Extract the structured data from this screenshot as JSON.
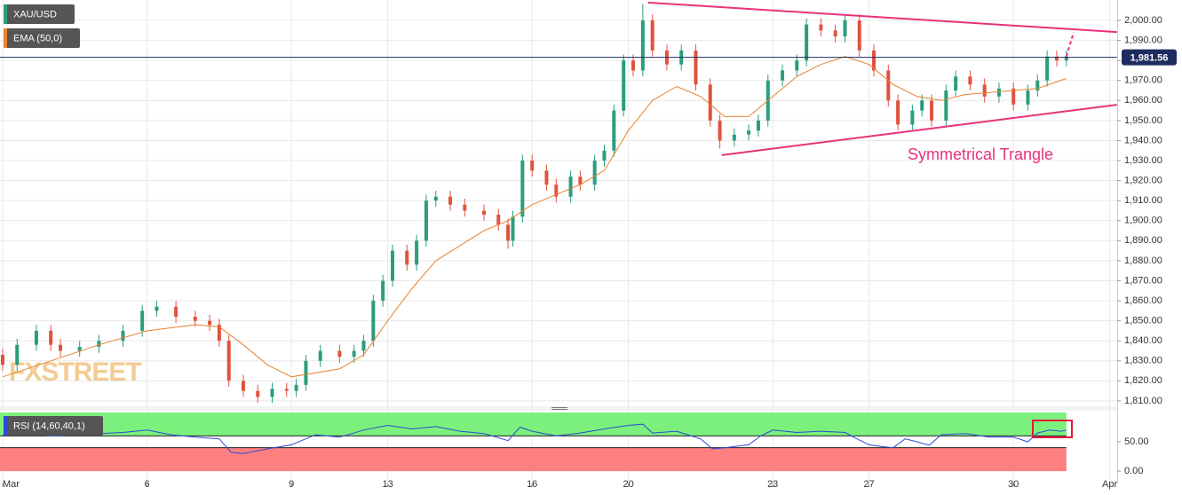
{
  "chart_data": [
    {
      "type": "candlestick",
      "name": "XAU/USD",
      "up_color": "#2a9d7f",
      "down_color": "#e0533f",
      "x": [
        0,
        0.3,
        0.7,
        1,
        1.2,
        1.6,
        2,
        2.5,
        2.9,
        3.2,
        3.6,
        4,
        4.3,
        4.5,
        4.7,
        5,
        5.3,
        5.6,
        5.9,
        6.1,
        6.3,
        6.6,
        7,
        7.3,
        7.5,
        7.7,
        7.9,
        8.1,
        8.4,
        8.6,
        8.8,
        9,
        9.3,
        9.6,
        10,
        10.3,
        10.5,
        10.6,
        10.8,
        11,
        11.3,
        11.5,
        11.8,
        12,
        12.3,
        12.5,
        12.7,
        12.9,
        13.1,
        13.3,
        13.5,
        13.8,
        14.1,
        14.4,
        14.7,
        14.9,
        15.2,
        15.5,
        15.7,
        15.9,
        16.2,
        16.5,
        16.7,
        17,
        17.3,
        17.5,
        17.8,
        18.1,
        18.4,
        18.6,
        18.9,
        19.1,
        19.3,
        19.6,
        19.8,
        20.1,
        20.4,
        20.7,
        21,
        21.3,
        21.5,
        21.7,
        21.9,
        22.1
      ],
      "open": [
        1833,
        1828,
        1838,
        1845,
        1838,
        1835,
        1837,
        1840,
        1845,
        1855,
        1857,
        1852,
        1850,
        1848,
        1840,
        1820,
        1815,
        1812,
        1816,
        1815,
        1818,
        1830,
        1835,
        1832,
        1835,
        1840,
        1860,
        1870,
        1885,
        1878,
        1890,
        1910,
        1912,
        1908,
        1905,
        1903,
        1898,
        1890,
        1902,
        1930,
        1925,
        1918,
        1912,
        1922,
        1918,
        1930,
        1935,
        1955,
        1980,
        1975,
        2000,
        1985,
        1978,
        1985,
        1968,
        1950,
        1940,
        1943,
        1945,
        1950,
        1970,
        1975,
        1980,
        1998,
        1995,
        1992,
        2000,
        1985,
        1975,
        1960,
        1948,
        1955,
        1960,
        1950,
        1965,
        1972,
        1968,
        1962,
        1966,
        1958,
        1965,
        1970,
        1982,
        1980
      ],
      "high": [
        1836,
        1841,
        1848,
        1848,
        1841,
        1840,
        1843,
        1848,
        1858,
        1860,
        1860,
        1855,
        1853,
        1851,
        1843,
        1823,
        1818,
        1819,
        1819,
        1821,
        1833,
        1838,
        1838,
        1838,
        1843,
        1863,
        1873,
        1888,
        1888,
        1893,
        1913,
        1915,
        1915,
        1911,
        1908,
        1906,
        1901,
        1905,
        1933,
        1933,
        1928,
        1921,
        1925,
        1925,
        1933,
        1938,
        1958,
        1983,
        1983,
        2008,
        2003,
        1988,
        1988,
        1988,
        1971,
        1953,
        1946,
        1948,
        1953,
        1973,
        1978,
        1983,
        2001,
        2001,
        1998,
        2003,
        2003,
        1988,
        1978,
        1963,
        1958,
        1963,
        1963,
        1968,
        1975,
        1975,
        1971,
        1969,
        1969,
        1968,
        1973,
        1985,
        1985,
        1985
      ],
      "low": [
        1825,
        1825,
        1835,
        1835,
        1832,
        1832,
        1834,
        1837,
        1842,
        1852,
        1849,
        1847,
        1845,
        1837,
        1817,
        1812,
        1809,
        1809,
        1812,
        1812,
        1815,
        1827,
        1829,
        1829,
        1832,
        1837,
        1857,
        1867,
        1875,
        1875,
        1887,
        1907,
        1905,
        1902,
        1900,
        1895,
        1886,
        1887,
        1899,
        1922,
        1915,
        1909,
        1909,
        1915,
        1915,
        1927,
        1932,
        1952,
        1972,
        1972,
        1982,
        1975,
        1975,
        1965,
        1947,
        1936,
        1937,
        1940,
        1942,
        1947,
        1967,
        1972,
        1977,
        1992,
        1989,
        1989,
        1982,
        1972,
        1957,
        1945,
        1945,
        1952,
        1947,
        1947,
        1962,
        1965,
        1959,
        1959,
        1955,
        1955,
        1962,
        1967,
        1977,
        1977
      ],
      "close": [
        1828,
        1838,
        1845,
        1838,
        1835,
        1837,
        1840,
        1845,
        1855,
        1857,
        1852,
        1850,
        1848,
        1840,
        1820,
        1815,
        1812,
        1816,
        1815,
        1818,
        1830,
        1835,
        1832,
        1835,
        1840,
        1860,
        1870,
        1885,
        1878,
        1890,
        1910,
        1912,
        1908,
        1905,
        1903,
        1898,
        1890,
        1902,
        1930,
        1925,
        1918,
        1912,
        1922,
        1918,
        1930,
        1935,
        1955,
        1980,
        1975,
        2000,
        1985,
        1978,
        1985,
        1968,
        1950,
        1940,
        1943,
        1945,
        1950,
        1970,
        1975,
        1980,
        1998,
        1995,
        1992,
        2000,
        1985,
        1975,
        1960,
        1948,
        1955,
        1960,
        1950,
        1965,
        1972,
        1968,
        1962,
        1966,
        1958,
        1965,
        1970,
        1982,
        1980,
        1982
      ],
      "ema": {
        "name": "EMA (50,0)",
        "color": "#e8822c",
        "x": [
          0,
          1,
          2,
          3,
          4,
          4.5,
          5,
          5.5,
          6,
          7,
          7.5,
          8,
          8.5,
          9,
          10,
          10.5,
          11,
          12,
          12.5,
          13,
          13.5,
          14,
          14.5,
          15,
          15.5,
          16,
          16.5,
          17,
          17.5,
          18,
          18.5,
          19,
          19.5,
          20,
          20.5,
          21,
          21.5,
          22.1
        ],
        "values": [
          1822,
          1830,
          1838,
          1845,
          1848,
          1847,
          1838,
          1828,
          1822,
          1826,
          1833,
          1850,
          1866,
          1880,
          1895,
          1900,
          1908,
          1918,
          1925,
          1945,
          1960,
          1967,
          1962,
          1952,
          1952,
          1962,
          1972,
          1978,
          1982,
          1978,
          1968,
          1962,
          1960,
          1963,
          1964,
          1965,
          1966,
          1971
        ]
      },
      "last_price": {
        "value": 1981.56,
        "label": "1,981.56"
      },
      "trendline_color": "#e8317a",
      "trendlines": [
        {
          "x": [
            13.41,
            23.15
          ],
          "values": [
            2008.9,
            1994.2
          ]
        },
        {
          "x": [
            14.94,
            23.15
          ],
          "values": [
            1932.7,
            1957.9
          ]
        }
      ],
      "projection": {
        "x": [
          22.1,
          22.25
        ],
        "values": [
          1982,
          1994
        ]
      },
      "annotation": "Symmetrical Trangle",
      "watermark": "FXSTREET",
      "xlim": [
        -0.055,
        23.155
      ],
      "ylim": [
        1807.3,
        2010.2
      ],
      "xticks": [
        {
          "value": 0,
          "label": "Mar"
        },
        {
          "value": 3,
          "label": "6"
        },
        {
          "value": 6,
          "label": "9"
        },
        {
          "value": 8,
          "label": "13"
        },
        {
          "value": 11,
          "label": "16"
        },
        {
          "value": 13,
          "label": "20"
        },
        {
          "value": 16,
          "label": "23"
        },
        {
          "value": 18,
          "label": "27"
        },
        {
          "value": 21,
          "label": "30"
        },
        {
          "value": 23,
          "label": "Apr"
        }
      ],
      "yticks": [
        {
          "value": 1810,
          "label": "1,810.00"
        },
        {
          "value": 1820,
          "label": "1,820.00"
        },
        {
          "value": 1830,
          "label": "1,830.00"
        },
        {
          "value": 1840,
          "label": "1,840.00"
        },
        {
          "value": 1850,
          "label": "1,850.00"
        },
        {
          "value": 1860,
          "label": "1,860.00"
        },
        {
          "value": 1870,
          "label": "1,870.00"
        },
        {
          "value": 1880,
          "label": "1,880.00"
        },
        {
          "value": 1890,
          "label": "1,890.00"
        },
        {
          "value": 1900,
          "label": "1,900.00"
        },
        {
          "value": 1910,
          "label": "1,910.00"
        },
        {
          "value": 1920,
          "label": "1,920.00"
        },
        {
          "value": 1930,
          "label": "1,930.00"
        },
        {
          "value": 1940,
          "label": "1,940.00"
        },
        {
          "value": 1950,
          "label": "1,950.00"
        },
        {
          "value": 1960,
          "label": "1,960.00"
        },
        {
          "value": 1970,
          "label": "1,970.00"
        },
        {
          "value": 1980,
          "label": "1,980.00"
        },
        {
          "value": 1990,
          "label": "1,990.00"
        },
        {
          "value": 2000,
          "label": "2,000.00"
        }
      ],
      "grid": true
    },
    {
      "type": "line",
      "name": "RSI (14,60,40,1)",
      "color": "#2b4bd8",
      "x": [
        0,
        0.5,
        1,
        1.5,
        2,
        2.5,
        3,
        3.5,
        4,
        4.5,
        4.75,
        5,
        5.5,
        6,
        6.5,
        7,
        7.5,
        8,
        8.5,
        9,
        9.5,
        10,
        10.5,
        10.75,
        11,
        11.5,
        12,
        12.5,
        13,
        13.3,
        13.5,
        14,
        14.5,
        14.75,
        15,
        15.5,
        15.75,
        16,
        16.5,
        17,
        17.5,
        17.75,
        18,
        18.25,
        18.5,
        18.75,
        19,
        19.25,
        19.5,
        20,
        20.5,
        21,
        21.3,
        21.5,
        21.75,
        22,
        22.1
      ],
      "values": [
        62,
        65,
        60,
        62,
        64,
        66,
        70,
        62,
        58,
        55,
        32,
        30,
        38,
        45,
        62,
        58,
        70,
        78,
        72,
        76,
        68,
        64,
        52,
        75,
        68,
        60,
        65,
        72,
        78,
        80,
        65,
        68,
        55,
        38,
        40,
        45,
        60,
        70,
        66,
        68,
        66,
        55,
        45,
        42,
        40,
        55,
        50,
        44,
        62,
        64,
        58,
        58,
        50,
        65,
        70,
        68,
        70
      ],
      "upper_level": 60,
      "lower_level": 40,
      "upper_color": "#7cf07c",
      "lower_color": "#fd7f7f",
      "xlim": [
        -0.055,
        23.155
      ],
      "ylim": [
        -21,
        103
      ],
      "yticks": [
        {
          "value": 0,
          "label": "0.00"
        },
        {
          "value": 50,
          "label": "50.00"
        }
      ]
    }
  ]
}
